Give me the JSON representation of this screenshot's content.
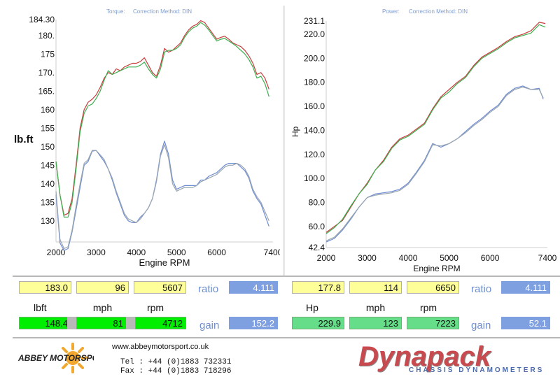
{
  "brand": {
    "company": "ABBEY MOTORSPORT",
    "website": "www.abbeymotorsport.co.uk",
    "tel": "Tel : +44 (0)1883 732331",
    "fax": "Fax : +44 (0)1883 718296",
    "dyno": "Dynapack",
    "dyno_sub": "CHASSIS DYNAMOMETERS"
  },
  "colors": {
    "run_red": "#c83c3c",
    "run_green": "#3cb050",
    "run_blue": "#6e8cd2",
    "run_gray": "#9aa6b0"
  },
  "chart_data": [
    {
      "type": "line",
      "title_prefix": "Torque:",
      "title_method": "Correction Method: DIN",
      "ylabel": "lb.ft",
      "xlabel": "Engine RPM",
      "xlim": [
        2000,
        7400
      ],
      "ylim": [
        124.3,
        184.3
      ],
      "x_ticks": [
        "2000",
        "3000",
        "4000",
        "5000",
        "6000",
        "7400"
      ],
      "y_ticks": [
        "184.30",
        "180.",
        "175",
        "170.",
        "165.",
        "160",
        "155",
        "150",
        "145",
        "140",
        "135",
        "130"
      ],
      "series": [
        {
          "name": "run1-red",
          "x": [
            2000,
            2100,
            2200,
            2300,
            2400,
            2500,
            2600,
            2700,
            2800,
            2900,
            3000,
            3100,
            3200,
            3300,
            3400,
            3500,
            3600,
            3700,
            3800,
            3900,
            4000,
            4100,
            4200,
            4300,
            4400,
            4500,
            4600,
            4700,
            4800,
            4900,
            5000,
            5100,
            5200,
            5300,
            5400,
            5500,
            5600,
            5700,
            5800,
            5900,
            6000,
            6100,
            6200,
            6300,
            6400,
            6500,
            6600,
            6700,
            6800,
            6900,
            7000,
            7100,
            7200,
            7300
          ],
          "y": [
            146,
            137,
            131.5,
            132,
            136,
            145,
            155,
            160,
            162,
            162.8,
            164,
            166,
            168.5,
            170,
            169.5,
            171,
            170.5,
            171.5,
            172,
            172.5,
            172.5,
            173,
            174,
            172,
            170,
            169,
            172,
            176.5,
            175.5,
            176,
            177,
            178,
            180,
            181.5,
            182.5,
            183,
            184,
            183.5,
            182,
            180.5,
            179,
            179.5,
            179.8,
            179,
            178,
            177.5,
            177,
            176,
            174.5,
            172.5,
            169.5,
            170,
            168.5,
            165.5
          ]
        },
        {
          "name": "run1-green",
          "x": [
            2000,
            2100,
            2200,
            2300,
            2400,
            2500,
            2600,
            2700,
            2800,
            2900,
            3000,
            3100,
            3200,
            3300,
            3400,
            3500,
            3600,
            3700,
            3800,
            3900,
            4000,
            4100,
            4200,
            4300,
            4400,
            4500,
            4600,
            4700,
            4800,
            4900,
            5000,
            5100,
            5200,
            5300,
            5400,
            5500,
            5600,
            5700,
            5800,
            5900,
            6000,
            6100,
            6200,
            6300,
            6400,
            6500,
            6600,
            6700,
            6800,
            6900,
            7000,
            7100,
            7200,
            7300
          ],
          "y": [
            146,
            137,
            131,
            131,
            135,
            144,
            154,
            159,
            161,
            161.5,
            163,
            165,
            168,
            170.5,
            169.5,
            170,
            170.5,
            171,
            171.5,
            171.5,
            171.5,
            172,
            172.8,
            171,
            169.5,
            168.5,
            171,
            175.5,
            176,
            176,
            176.5,
            177.5,
            179.5,
            181,
            182,
            182.5,
            183.5,
            182.8,
            181.5,
            180,
            178.5,
            179,
            179.2,
            178.5,
            177.8,
            177,
            176,
            175,
            173.5,
            171.5,
            168.5,
            169,
            167,
            163.5
          ]
        },
        {
          "name": "run2-blue",
          "x": [
            2000,
            2100,
            2200,
            2300,
            2400,
            2500,
            2600,
            2700,
            2800,
            2900,
            3000,
            3100,
            3200,
            3300,
            3400,
            3500,
            3600,
            3700,
            3800,
            3900,
            4000,
            4100,
            4200,
            4300,
            4400,
            4500,
            4600,
            4700,
            4800,
            4900,
            5000,
            5100,
            5200,
            5300,
            5400,
            5500,
            5600,
            5700,
            5800,
            5900,
            6000,
            6100,
            6200,
            6300,
            6400,
            6500,
            6600,
            6700,
            6800,
            6900,
            7000,
            7100,
            7200,
            7300
          ],
          "y": [
            137,
            124,
            122,
            122.5,
            127,
            133,
            139,
            145,
            146,
            148.8,
            149,
            147.5,
            146,
            144,
            141,
            137.5,
            134.5,
            131.5,
            130,
            129.5,
            129.5,
            131,
            132,
            133.5,
            136,
            141,
            148,
            151.5,
            148,
            141,
            138.5,
            139,
            139.5,
            139.5,
            139.5,
            139.5,
            141,
            141,
            142,
            142.5,
            143,
            144,
            145,
            145.5,
            145.5,
            145.5,
            144.5,
            143.5,
            141.5,
            138,
            136,
            134.5,
            131.5,
            128.5
          ]
        },
        {
          "name": "run2-gray",
          "x": [
            2000,
            2100,
            2200,
            2300,
            2400,
            2500,
            2600,
            2700,
            2800,
            2900,
            3000,
            3100,
            3200,
            3300,
            3400,
            3500,
            3600,
            3700,
            3800,
            3900,
            4000,
            4100,
            4200,
            4300,
            4400,
            4500,
            4600,
            4700,
            4800,
            4900,
            5000,
            5100,
            5200,
            5300,
            5400,
            5500,
            5600,
            5700,
            5800,
            5900,
            6000,
            6100,
            6200,
            6300,
            6400,
            6500,
            6600,
            6700,
            6800,
            6900,
            7000,
            7100,
            7200,
            7300
          ],
          "y": [
            138,
            125,
            122.5,
            123,
            127.5,
            134,
            140,
            145.5,
            146.5,
            149,
            149,
            147.8,
            146.5,
            144,
            141.5,
            138,
            135,
            132,
            130.5,
            130,
            129.5,
            130.5,
            132,
            133.5,
            136,
            140.5,
            147.5,
            150.5,
            147,
            140,
            138,
            138.5,
            139,
            139,
            139,
            139.5,
            140.5,
            141,
            141.5,
            142,
            142.5,
            143.5,
            144.5,
            145,
            145,
            145.5,
            145,
            144,
            142,
            138.5,
            136.5,
            135,
            132.5,
            130
          ]
        }
      ]
    },
    {
      "type": "line",
      "title_prefix": "Power:",
      "title_method": "Correction Method: DIN",
      "ylabel": "Hp",
      "xlabel": "Engine RPM",
      "xlim": [
        2000,
        7400
      ],
      "ylim": [
        42.4,
        231.1
      ],
      "x_ticks": [
        "2000",
        "3000",
        "4000",
        "5000",
        "6000",
        "7400"
      ],
      "y_ticks": [
        "231.1",
        "220.0",
        "200.0",
        "180.0",
        "160.0",
        "140.0",
        "120.0",
        "100.0",
        "80.0",
        "60.0",
        "42.4"
      ],
      "series": [
        {
          "name": "run1-red",
          "x": [
            2000,
            2200,
            2400,
            2600,
            2800,
            3000,
            3200,
            3400,
            3600,
            3800,
            4000,
            4200,
            4400,
            4600,
            4800,
            5000,
            5200,
            5400,
            5600,
            5800,
            6000,
            6200,
            6400,
            6600,
            6800,
            7000,
            7200,
            7350
          ],
          "y": [
            55,
            60,
            65,
            76,
            87,
            96,
            107,
            115,
            126,
            133,
            136,
            141,
            146,
            158,
            168,
            174,
            180,
            185,
            194,
            201,
            205,
            209,
            214,
            218,
            220,
            223,
            230,
            229
          ]
        },
        {
          "name": "run1-green",
          "x": [
            2000,
            2200,
            2400,
            2600,
            2800,
            3000,
            3200,
            3400,
            3600,
            3800,
            4000,
            4200,
            4400,
            4600,
            4800,
            5000,
            5200,
            5400,
            5600,
            5800,
            6000,
            6200,
            6400,
            6600,
            6800,
            7000,
            7200,
            7350
          ],
          "y": [
            54,
            59,
            66,
            77,
            87,
            95,
            107,
            114,
            125,
            132,
            135,
            140,
            145,
            157,
            167,
            172,
            179,
            184,
            193,
            200,
            204,
            208,
            213,
            217,
            219,
            221,
            228,
            226
          ]
        },
        {
          "name": "run2-blue",
          "x": [
            2000,
            2200,
            2400,
            2600,
            2800,
            3000,
            3200,
            3400,
            3600,
            3800,
            4000,
            4200,
            4400,
            4600,
            4800,
            5000,
            5200,
            5400,
            5600,
            5800,
            6000,
            6200,
            6400,
            6600,
            6800,
            7000,
            7200,
            7300
          ],
          "y": [
            47,
            50,
            57,
            66,
            76,
            84,
            87,
            88,
            89,
            91,
            96,
            105,
            115,
            129,
            126,
            129,
            133,
            139,
            145,
            150,
            156,
            161,
            170,
            175,
            177,
            174,
            175,
            166
          ]
        },
        {
          "name": "run2-gray",
          "x": [
            2000,
            2200,
            2400,
            2600,
            2800,
            3000,
            3200,
            3400,
            3600,
            3800,
            4000,
            4200,
            4400,
            4600,
            4800,
            5000,
            5200,
            5400,
            5600,
            5800,
            6000,
            6200,
            6400,
            6600,
            6800,
            7000,
            7200,
            7300
          ],
          "y": [
            48,
            51,
            58,
            67,
            76,
            84,
            86,
            87,
            88,
            90,
            95,
            104,
            114,
            128,
            127,
            129,
            133,
            138,
            144,
            149,
            155,
            160,
            169,
            174,
            176,
            174,
            174,
            167
          ]
        }
      ]
    }
  ],
  "results": {
    "left": {
      "peak": {
        "torque": "183.0",
        "mph": "96",
        "rpm": "5607",
        "ratio": "4.111"
      },
      "headers": {
        "torque": "lbft",
        "mph": "mph",
        "rpm": "rpm"
      },
      "current": {
        "torque": "148.4",
        "mph": "81",
        "rpm": "4712",
        "gain": "152.2"
      },
      "ratio_label": "ratio",
      "gain_label": "gain"
    },
    "right": {
      "peak": {
        "power": "177.8",
        "mph": "114",
        "rpm": "6650",
        "ratio": "4.111"
      },
      "headers": {
        "power": "Hp",
        "mph": "mph",
        "rpm": "rpm"
      },
      "current": {
        "power": "229.9",
        "mph": "123",
        "rpm": "7223",
        "gain": "52.1"
      },
      "ratio_label": "ratio",
      "gain_label": "gain"
    }
  }
}
